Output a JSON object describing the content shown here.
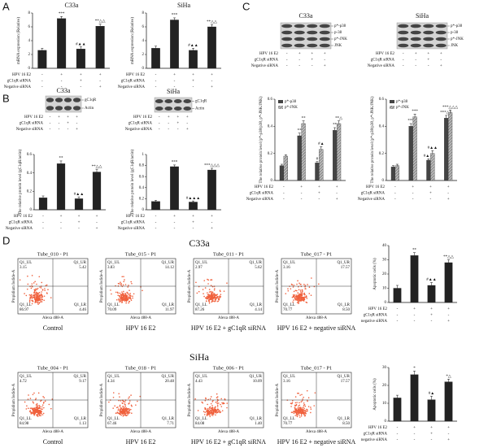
{
  "panels": [
    "A",
    "B",
    "C",
    "D"
  ],
  "chart_data": [
    {
      "type": "bar",
      "title": "C33a",
      "y_label": "mRNA expression (Relative)",
      "ylim": [
        0,
        8
      ],
      "yticks": [
        0,
        2,
        4,
        6,
        8
      ],
      "series": [
        {
          "color": "#222222",
          "values": [
            2.6,
            7.2,
            2.8,
            6.1
          ],
          "errors": [
            0.3,
            0.3,
            0.3,
            0.3
          ],
          "annotations": [
            null,
            "***",
            "#▲▲",
            "**△△"
          ]
        }
      ],
      "conditions": [
        {
          "name": "HPV 16 E2",
          "signs": [
            "-",
            "+",
            "+",
            "+"
          ]
        },
        {
          "name": "gC1qR siRNA",
          "signs": [
            "-",
            "-",
            "+",
            "-"
          ]
        },
        {
          "name": "Negative siRNA",
          "signs": [
            "-",
            "-",
            "-",
            "+"
          ]
        }
      ]
    },
    {
      "type": "bar",
      "title": "SiHa",
      "y_label": "mRNA expression (Relative)",
      "ylim": [
        0,
        8
      ],
      "yticks": [
        0,
        2,
        4,
        6,
        8
      ],
      "series": [
        {
          "color": "#222222",
          "values": [
            2.9,
            7.0,
            2.6,
            6.0
          ],
          "errors": [
            0.3,
            0.3,
            0.3,
            0.3
          ],
          "annotations": [
            null,
            "***",
            "#▲▲",
            "**△△"
          ]
        }
      ],
      "conditions": [
        {
          "name": "HPV 16 E2",
          "signs": [
            "-",
            "+",
            "+",
            "+"
          ]
        },
        {
          "name": "gC1qR siRNA",
          "signs": [
            "-",
            "-",
            "+",
            "-"
          ]
        },
        {
          "name": "Negative siRNA",
          "signs": [
            "-",
            "-",
            "-",
            "+"
          ]
        }
      ]
    },
    {
      "type": "bar",
      "y_label": "The relative protein level (gC1qR/actin)",
      "ylim": [
        0,
        0.6
      ],
      "yticks": [
        0,
        0.2,
        0.4,
        0.6
      ],
      "series": [
        {
          "color": "#222222",
          "values": [
            0.13,
            0.5,
            0.12,
            0.41
          ],
          "errors": [
            0.02,
            0.03,
            0.02,
            0.03
          ],
          "annotations": [
            null,
            "**",
            "#▲▲",
            "**△△"
          ]
        }
      ],
      "conditions": [
        {
          "name": "HPV 16 E2",
          "signs": [
            "-",
            "+",
            "+",
            "+"
          ]
        },
        {
          "name": "gC1qR siRNA",
          "signs": [
            "-",
            "-",
            "+",
            "-"
          ]
        },
        {
          "name": "Negative siRNA",
          "signs": [
            "-",
            "-",
            "-",
            "+"
          ]
        }
      ]
    },
    {
      "type": "bar",
      "y_label": "The relative protein level (gC1qR/actin)",
      "ylim": [
        0,
        1
      ],
      "yticks": [
        0,
        0.2,
        0.4,
        0.6,
        0.8,
        1
      ],
      "series": [
        {
          "color": "#222222",
          "values": [
            0.15,
            0.78,
            0.14,
            0.72
          ],
          "errors": [
            0.02,
            0.03,
            0.02,
            0.03
          ],
          "annotations": [
            null,
            "***",
            "#▲▲▲",
            "***△△△"
          ]
        }
      ],
      "conditions": [
        {
          "name": "HPV 16 E2",
          "signs": [
            "-",
            "+",
            "+",
            "+"
          ]
        },
        {
          "name": "gC1qR siRNA",
          "signs": [
            "-",
            "-",
            "+",
            "-"
          ]
        },
        {
          "name": "Negative siRNA",
          "signs": [
            "-",
            "-",
            "-",
            "+"
          ]
        }
      ]
    },
    {
      "type": "bar",
      "y_label": "The relative protein level (p*-p38/p38, p*-JNK/JNK)",
      "ylim": [
        0,
        0.6
      ],
      "yticks": [
        0,
        0.2,
        0.4,
        0.6
      ],
      "legend": "upper left",
      "series": [
        {
          "name": "p*-p38",
          "color": "#444444",
          "values": [
            0.11,
            0.33,
            0.13,
            0.37
          ],
          "errors": [
            0.01,
            0.02,
            0.01,
            0.02
          ],
          "annotations": [
            null,
            "**",
            "#",
            "**"
          ]
        },
        {
          "name": "p*-JNK",
          "color": "#999999",
          "hatch": true,
          "values": [
            0.18,
            0.42,
            0.23,
            0.42
          ],
          "errors": [
            0.01,
            0.02,
            0.02,
            0.02
          ],
          "annotations": [
            null,
            "**",
            "#▲",
            "**△"
          ]
        }
      ],
      "conditions": [
        {
          "name": "HPV 16 E2",
          "signs": [
            "-",
            "+",
            "+",
            "+"
          ]
        },
        {
          "name": "gC1qR siRNA",
          "signs": [
            "-",
            "-",
            "+",
            "-"
          ]
        },
        {
          "name": "Negative siRNA",
          "signs": [
            "-",
            "-",
            "-",
            "+"
          ]
        }
      ]
    },
    {
      "type": "bar",
      "y_label": "The relative protein level (p*-p38/p38, p*-JNK/JNK)",
      "ylim": [
        0,
        0.6
      ],
      "yticks": [
        0,
        0.2,
        0.4,
        0.6
      ],
      "legend": "upper left",
      "series": [
        {
          "name": "p*-p38",
          "color": "#444444",
          "values": [
            0.1,
            0.4,
            0.15,
            0.46
          ],
          "errors": [
            0.01,
            0.02,
            0.01,
            0.02
          ],
          "annotations": [
            null,
            "***",
            "#▲▲",
            "***△△"
          ]
        },
        {
          "name": "p*-JNK",
          "color": "#999999",
          "hatch": true,
          "values": [
            0.11,
            0.47,
            0.2,
            0.5
          ],
          "errors": [
            0.01,
            0.02,
            0.02,
            0.02
          ],
          "annotations": [
            null,
            "***",
            "#▲▲",
            "***△△△"
          ]
        }
      ],
      "conditions": [
        {
          "name": "HPV 16 E2",
          "signs": [
            "-",
            "+",
            "+",
            "+"
          ]
        },
        {
          "name": "gC1qR siRNA",
          "signs": [
            "-",
            "-",
            "+",
            "-"
          ]
        },
        {
          "name": "Negative siRNA",
          "signs": [
            "-",
            "-",
            "-",
            "+"
          ]
        }
      ]
    },
    {
      "type": "bar",
      "y_label": "Apoptotic cells (%)",
      "ylim": [
        0,
        40
      ],
      "yticks": [
        0,
        10,
        20,
        30,
        40
      ],
      "series": [
        {
          "color": "#222222",
          "values": [
            10,
            33,
            12,
            28
          ],
          "errors": [
            2,
            2,
            2,
            2
          ],
          "annotations": [
            null,
            "**",
            "#▲▲",
            "**△△"
          ]
        }
      ],
      "conditions": [
        {
          "name": "HPV 16 E2",
          "signs": [
            "-",
            "+",
            "+",
            "+"
          ]
        },
        {
          "name": "gC1qR siRNA",
          "signs": [
            "-",
            "-",
            "+",
            "-"
          ]
        },
        {
          "name": "negative siRNA",
          "signs": [
            "-",
            "-",
            "-",
            "+"
          ]
        }
      ]
    },
    {
      "type": "bar",
      "y_label": "Apoptotic cells (%)",
      "ylim": [
        0,
        30
      ],
      "yticks": [
        0,
        10,
        20,
        30
      ],
      "series": [
        {
          "color": "#222222",
          "values": [
            13,
            26,
            12,
            22
          ],
          "errors": [
            1.5,
            2,
            2,
            1.5
          ],
          "annotations": [
            null,
            "*",
            "#▲",
            "*△"
          ]
        }
      ],
      "conditions": [
        {
          "name": "HPV 16 E2",
          "signs": [
            "-",
            "+",
            "+",
            "+"
          ]
        },
        {
          "name": "gC1qR siRNA",
          "signs": [
            "-",
            "-",
            "+",
            "-"
          ]
        },
        {
          "name": "negative siRNA",
          "signs": [
            "-",
            "-",
            "-",
            "+"
          ]
        }
      ]
    }
  ],
  "blots": [
    {
      "title": "C33a",
      "labels": [
        "gC1qR",
        "Actin"
      ],
      "conditions": [
        {
          "name": "HPV 16 E2",
          "signs": [
            "-",
            "+",
            "+",
            "+"
          ]
        },
        {
          "name": "gC1qR siRNA",
          "signs": [
            "-",
            "-",
            "+",
            "-"
          ]
        },
        {
          "name": "Negative siRNA",
          "signs": [
            "-",
            "-",
            "-",
            "+"
          ]
        }
      ]
    },
    {
      "title": "SiHa",
      "labels": [
        "gC1qR",
        "Actin"
      ],
      "conditions": [
        {
          "name": "HPV 16 E2",
          "signs": [
            "-",
            "+",
            "+",
            "+"
          ]
        },
        {
          "name": "gC1qR siRNA",
          "signs": [
            "-",
            "-",
            "+",
            "-"
          ]
        },
        {
          "name": "Negative siRNA",
          "signs": [
            "-",
            "-",
            "-",
            "+"
          ]
        }
      ]
    },
    {
      "title": "C33a",
      "labels": [
        "p*-p38",
        "p-38",
        "p*-JNK",
        "JNK"
      ],
      "conditions": [
        {
          "name": "HPV 16 E2",
          "signs": [
            "-",
            "+",
            "+",
            "+"
          ]
        },
        {
          "name": "gC1qR siRNA",
          "signs": [
            "-",
            "-",
            "+",
            "-"
          ]
        },
        {
          "name": "Negative siRNA",
          "signs": [
            "-",
            "-",
            "-",
            "+"
          ]
        }
      ]
    },
    {
      "title": "SiHa",
      "labels": [
        "p*-p38",
        "p-38",
        "p*-JNK",
        "JNK"
      ],
      "conditions": [
        {
          "name": "HPV 16 E2",
          "signs": [
            "-",
            "+",
            "+",
            "+"
          ]
        },
        {
          "name": "gC1qR siRNA",
          "signs": [
            "-",
            "-",
            "+",
            "-"
          ]
        },
        {
          "name": "Negative siRNA",
          "signs": [
            "-",
            "-",
            "-",
            "+"
          ]
        }
      ]
    }
  ],
  "flow_sections": [
    {
      "title": "C33a",
      "plots": [
        {
          "tube": "Tube_010 - P1",
          "y_label": "Propidium Iodide-A",
          "x_label": "Alexa 488-A",
          "caption": "Control",
          "quadrants": [
            {
              "label": "Q1_UL",
              "value": "3.15"
            },
            {
              "label": "Q1_UR",
              "value": "5.42"
            },
            {
              "label": "Q1_LL",
              "value": "86.97"
            },
            {
              "label": "Q1_LR",
              "value": "4.46"
            }
          ]
        },
        {
          "tube": "Tube_015 - P1",
          "y_label": "Propidium Iodide-A",
          "x_label": "Alexa 488-A",
          "caption": "HPV 16 E2",
          "quadrants": [
            {
              "label": "Q1_UL",
              "value": "3.83"
            },
            {
              "label": "Q1_UR",
              "value": "14.12"
            },
            {
              "label": "Q1_LL",
              "value": "70.09"
            },
            {
              "label": "Q1_LR",
              "value": "11.97"
            }
          ]
        },
        {
          "tube": "Tube_011 - P1",
          "y_label": "Propidium Iodide-A",
          "x_label": "Alexa 488-A",
          "caption": "HPV 16 E2 + gC1qR siRNA",
          "quadrants": [
            {
              "label": "Q1_UL",
              "value": "2.97"
            },
            {
              "label": "Q1_UR",
              "value": "5.62"
            },
            {
              "label": "Q1_LL",
              "value": "87.26"
            },
            {
              "label": "Q1_LR",
              "value": "4.14"
            }
          ]
        },
        {
          "tube": "Tube_017 - P1",
          "y_label": "Propidium Iodide-A",
          "x_label": "Alexa 488-A",
          "caption": "HPV 16 E2 + negative siRNA",
          "quadrants": [
            {
              "label": "Q1_UL",
              "value": "3.16"
            },
            {
              "label": "Q1_UR",
              "value": "17.57"
            },
            {
              "label": "Q1_LL",
              "value": "70.77"
            },
            {
              "label": "Q1_LR",
              "value": "8.50"
            }
          ]
        }
      ]
    },
    {
      "title": "SiHa",
      "plots": [
        {
          "tube": "Tube_004 - P1",
          "y_label": "Propidium Iodide-A",
          "x_label": "Alexa 488-A",
          "caption": "Control",
          "quadrants": [
            {
              "label": "Q1_UL",
              "value": "4.72"
            },
            {
              "label": "Q1_UR",
              "value": "9.17"
            },
            {
              "label": "Q1_LL",
              "value": "84.98"
            },
            {
              "label": "Q1_LR",
              "value": "1.13"
            }
          ]
        },
        {
          "tube": "Tube_018 - P1",
          "y_label": "Propidium Iodide-A",
          "x_label": "Alexa 488-A",
          "caption": "HPV 16 E2",
          "quadrants": [
            {
              "label": "Q1_UL",
              "value": "4.34"
            },
            {
              "label": "Q1_UR",
              "value": "20.48"
            },
            {
              "label": "Q1_LL",
              "value": "67.46"
            },
            {
              "label": "Q1_LR",
              "value": "7.71"
            }
          ]
        },
        {
          "tube": "Tube_006 - P1",
          "y_label": "Propidium Iodide-A",
          "x_label": "Alexa 488-A",
          "caption": "HPV 16 E2 + gC1qR siRNA",
          "quadrants": [
            {
              "label": "Q1_UL",
              "value": "4.43"
            },
            {
              "label": "Q1_UR",
              "value": "10.09"
            },
            {
              "label": "Q1_LL",
              "value": "84.08"
            },
            {
              "label": "Q1_LR",
              "value": "1.40"
            }
          ]
        },
        {
          "tube": "Tube_017 - P1",
          "y_label": "Propidium Iodide-A",
          "x_label": "Alexa 488-A",
          "caption": "HPV 16 E2 + negative siRNA",
          "quadrants": [
            {
              "label": "Q1_UL",
              "value": "3.16"
            },
            {
              "label": "Q1_UR",
              "value": "17.57"
            },
            {
              "label": "Q1_LL",
              "value": "70.77"
            },
            {
              "label": "Q1_LR",
              "value": "8.50"
            }
          ]
        }
      ]
    }
  ]
}
